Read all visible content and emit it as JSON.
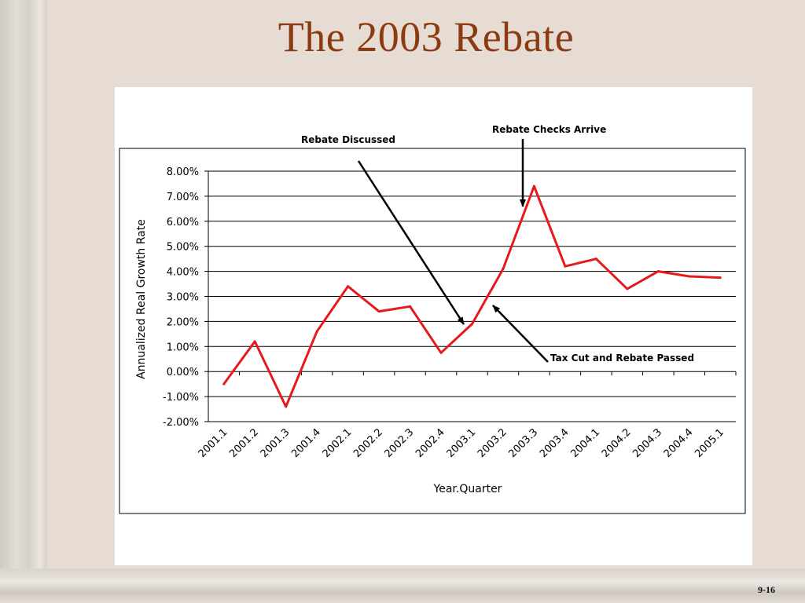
{
  "slide": {
    "title": "The 2003 Rebate",
    "page_number": "9-16"
  },
  "chart_data": {
    "type": "line",
    "title": "",
    "xlabel": "Year.Quarter",
    "ylabel": "Annualized Real Growth Rate",
    "ylim": [
      -0.02,
      0.08
    ],
    "y_ticks": [
      -0.02,
      -0.01,
      0.0,
      0.01,
      0.02,
      0.03,
      0.04,
      0.05,
      0.06,
      0.07,
      0.08
    ],
    "y_tick_labels": [
      "-2.00%",
      "-1.00%",
      "0.00%",
      "1.00%",
      "2.00%",
      "3.00%",
      "4.00%",
      "5.00%",
      "6.00%",
      "7.00%",
      "8.00%"
    ],
    "grid": "horizontal",
    "categories": [
      "2001.1",
      "2001.2",
      "2001.3",
      "2001.4",
      "2002.1",
      "2002.2",
      "2002.3",
      "2002.4",
      "2003.1",
      "2003.2",
      "2003.3",
      "2003.4",
      "2004.1",
      "2004.2",
      "2004.3",
      "2004.4",
      "2005.1"
    ],
    "series": [
      {
        "color": "#e41a1c",
        "values": [
          -0.005,
          0.012,
          -0.014,
          0.016,
          0.034,
          0.024,
          0.026,
          0.0075,
          0.019,
          0.041,
          0.074,
          0.042,
          0.045,
          0.033,
          0.04,
          0.038,
          0.0375
        ]
      }
    ],
    "annotations": [
      {
        "text": "Rebate Discussed",
        "points_to": "2003.1"
      },
      {
        "text": "Rebate Checks Arrive",
        "points_to": "2003.3"
      },
      {
        "text": "Tax Cut and Rebate Passed",
        "points_to": "2003.2"
      }
    ]
  }
}
